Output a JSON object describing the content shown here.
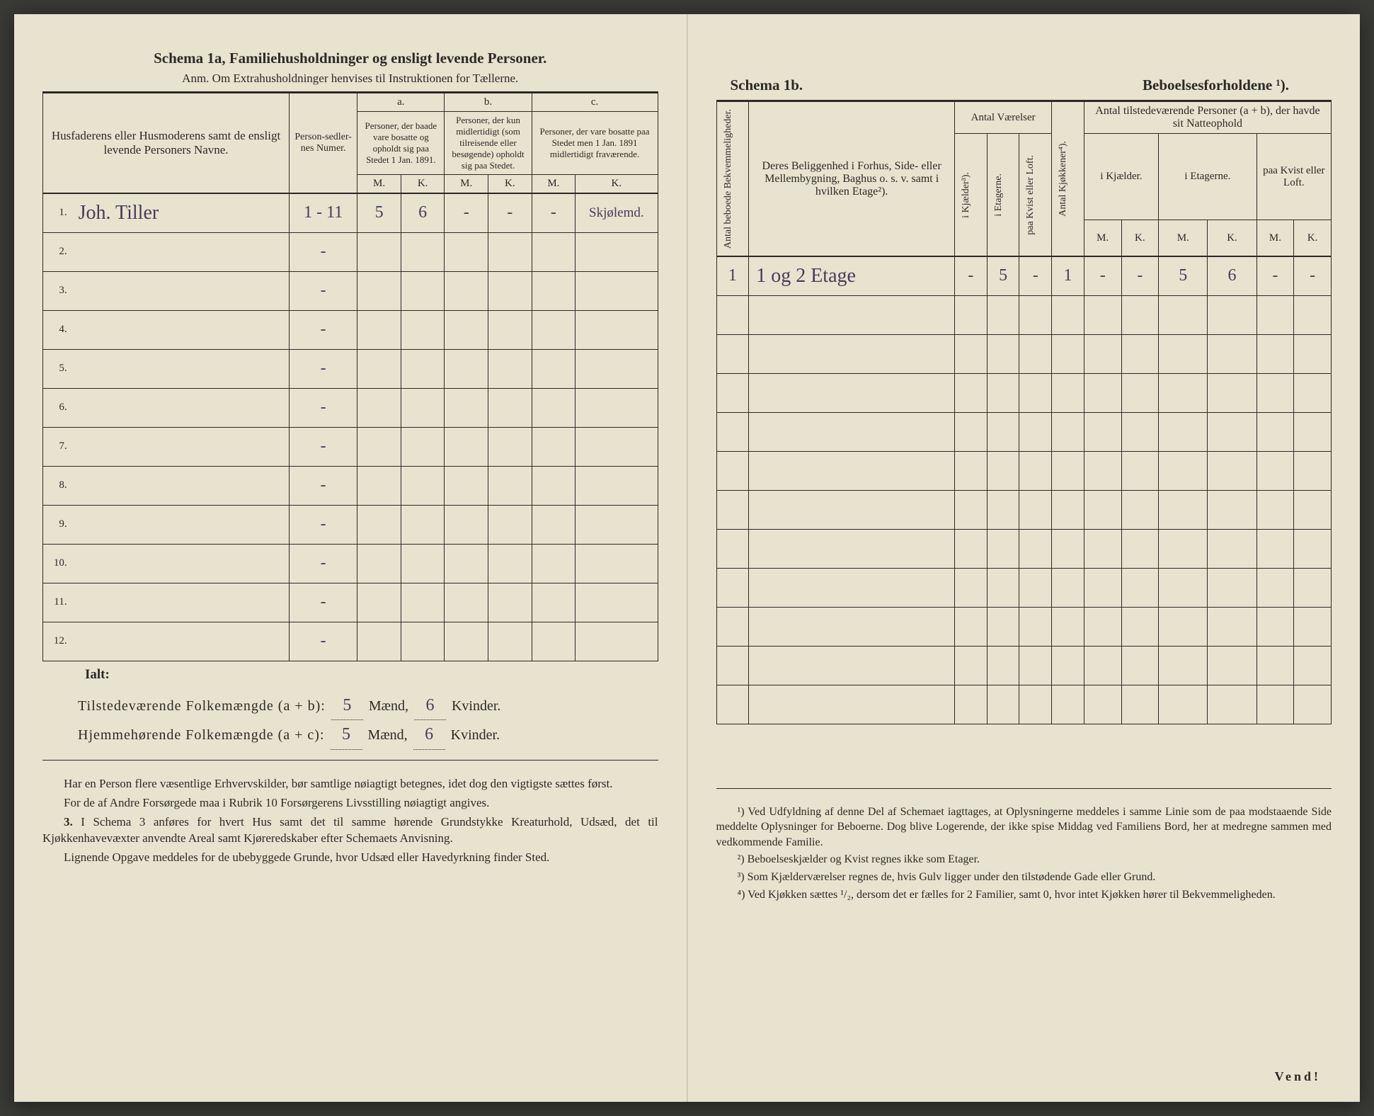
{
  "left": {
    "title": "Schema 1a,   Familiehusholdninger og ensligt levende Personer.",
    "anm": "Anm. Om Extrahusholdninger henvises til Instruktionen for Tællerne.",
    "headers": {
      "name": "Husfaderens eller Husmoderens samt de ensligt levende Personers Navne.",
      "person_num": "Person-sedler-nes Numer.",
      "a_label": "a.",
      "a_text": "Personer, der baade vare bosatte og opholdt sig paa Stedet 1 Jan. 1891.",
      "b_label": "b.",
      "b_text": "Personer, der kun midlertidigt (som tilreisende eller besøgende) opholdt sig paa Stedet.",
      "c_label": "c.",
      "c_text": "Personer, der vare bosatte paa Stedet men 1 Jan. 1891 midlertidigt fraværende.",
      "m": "M.",
      "k": "K."
    },
    "rows": [
      {
        "n": "1.",
        "name": "Joh. Tiller",
        "pn": "1 - 11",
        "am": "5",
        "ak": "6",
        "bm": "-",
        "bk": "-",
        "cm": "-",
        "ck": "Skjølemd."
      },
      {
        "n": "2.",
        "name": "",
        "pn": "-",
        "am": "",
        "ak": "",
        "bm": "",
        "bk": "",
        "cm": "",
        "ck": ""
      },
      {
        "n": "3.",
        "name": "",
        "pn": "-",
        "am": "",
        "ak": "",
        "bm": "",
        "bk": "",
        "cm": "",
        "ck": ""
      },
      {
        "n": "4.",
        "name": "",
        "pn": "-",
        "am": "",
        "ak": "",
        "bm": "",
        "bk": "",
        "cm": "",
        "ck": ""
      },
      {
        "n": "5.",
        "name": "",
        "pn": "-",
        "am": "",
        "ak": "",
        "bm": "",
        "bk": "",
        "cm": "",
        "ck": ""
      },
      {
        "n": "6.",
        "name": "",
        "pn": "-",
        "am": "",
        "ak": "",
        "bm": "",
        "bk": "",
        "cm": "",
        "ck": ""
      },
      {
        "n": "7.",
        "name": "",
        "pn": "-",
        "am": "",
        "ak": "",
        "bm": "",
        "bk": "",
        "cm": "",
        "ck": ""
      },
      {
        "n": "8.",
        "name": "",
        "pn": "-",
        "am": "",
        "ak": "",
        "bm": "",
        "bk": "",
        "cm": "",
        "ck": ""
      },
      {
        "n": "9.",
        "name": "",
        "pn": "-",
        "am": "",
        "ak": "",
        "bm": "",
        "bk": "",
        "cm": "",
        "ck": ""
      },
      {
        "n": "10.",
        "name": "",
        "pn": "-",
        "am": "",
        "ak": "",
        "bm": "",
        "bk": "",
        "cm": "",
        "ck": ""
      },
      {
        "n": "11.",
        "name": "",
        "pn": "-",
        "am": "",
        "ak": "",
        "bm": "",
        "bk": "",
        "cm": "",
        "ck": ""
      },
      {
        "n": "12.",
        "name": "",
        "pn": "-",
        "am": "",
        "ak": "",
        "bm": "",
        "bk": "",
        "cm": "",
        "ck": ""
      }
    ],
    "ialt": "Ialt:",
    "sum1_label": "Tilstedeværende Folkemængde (a + b):",
    "sum2_label": "Hjemmehørende Folkemængde (a + c):",
    "sum1_m": "5",
    "sum1_k": "6",
    "sum2_m": "5",
    "sum2_k": "6",
    "maend": "Mænd,",
    "kvinder": "Kvinder.",
    "notes": {
      "p1": "Har en Person flere væsentlige Erhvervskilder, bør samtlige nøiagtigt betegnes, idet dog den vigtigste sættes først.",
      "p2": "For de af Andre Forsørgede maa i Rubrik 10 Forsørgerens Livsstilling nøiagtigt angives.",
      "p3_num": "3.",
      "p3": "I Schema 3 anføres for hvert Hus samt det til samme hørende Grundstykke Kreaturhold, Udsæd, det til Kjøkkenhavevæxter anvendte Areal samt Kjøreredskaber efter Schemaets Anvisning.",
      "p4": "Lignende Opgave meddeles for de ubebyggede Grunde, hvor Udsæd eller Havedyrkning finder Sted."
    }
  },
  "right": {
    "title_a": "Schema 1b.",
    "title_b": "Beboelsesforholdene ¹).",
    "headers": {
      "antal_bekv": "Antal beboede Bekvemmeligheder.",
      "belig": "Deres Beliggenhed i Forhus, Side- eller Mellembygning, Baghus o. s. v. samt i hvilken Etage²).",
      "antal_vaer": "Antal Værelser",
      "kjelder": "i Kjælder³).",
      "etagerne": "i Etagerne.",
      "kvist": "paa Kvist eller Loft.",
      "kjokken": "Antal Kjøkkener⁴).",
      "tilstede": "Antal tilstedeværende Personer (a + b), der havde sit Natteophold",
      "ikj": "i Kjælder.",
      "iet": "i Etagerne.",
      "pkv": "paa Kvist eller Loft.",
      "m": "M.",
      "k": "K."
    },
    "rows": [
      {
        "n": "1",
        "belig": "1 og 2 Etage",
        "kj": "-",
        "et": "5",
        "kv": "-",
        "kk": "1",
        "km": "-",
        "kkf": "-",
        "em": "5",
        "ek": "6",
        "lm": "-",
        "lk": "-"
      },
      {
        "n": "",
        "belig": "",
        "kj": "",
        "et": "",
        "kv": "",
        "kk": "",
        "km": "",
        "kkf": "",
        "em": "",
        "ek": "",
        "lm": "",
        "lk": ""
      },
      {
        "n": "",
        "belig": "",
        "kj": "",
        "et": "",
        "kv": "",
        "kk": "",
        "km": "",
        "kkf": "",
        "em": "",
        "ek": "",
        "lm": "",
        "lk": ""
      },
      {
        "n": "",
        "belig": "",
        "kj": "",
        "et": "",
        "kv": "",
        "kk": "",
        "km": "",
        "kkf": "",
        "em": "",
        "ek": "",
        "lm": "",
        "lk": ""
      },
      {
        "n": "",
        "belig": "",
        "kj": "",
        "et": "",
        "kv": "",
        "kk": "",
        "km": "",
        "kkf": "",
        "em": "",
        "ek": "",
        "lm": "",
        "lk": ""
      },
      {
        "n": "",
        "belig": "",
        "kj": "",
        "et": "",
        "kv": "",
        "kk": "",
        "km": "",
        "kkf": "",
        "em": "",
        "ek": "",
        "lm": "",
        "lk": ""
      },
      {
        "n": "",
        "belig": "",
        "kj": "",
        "et": "",
        "kv": "",
        "kk": "",
        "km": "",
        "kkf": "",
        "em": "",
        "ek": "",
        "lm": "",
        "lk": ""
      },
      {
        "n": "",
        "belig": "",
        "kj": "",
        "et": "",
        "kv": "",
        "kk": "",
        "km": "",
        "kkf": "",
        "em": "",
        "ek": "",
        "lm": "",
        "lk": ""
      },
      {
        "n": "",
        "belig": "",
        "kj": "",
        "et": "",
        "kv": "",
        "kk": "",
        "km": "",
        "kkf": "",
        "em": "",
        "ek": "",
        "lm": "",
        "lk": ""
      },
      {
        "n": "",
        "belig": "",
        "kj": "",
        "et": "",
        "kv": "",
        "kk": "",
        "km": "",
        "kkf": "",
        "em": "",
        "ek": "",
        "lm": "",
        "lk": ""
      },
      {
        "n": "",
        "belig": "",
        "kj": "",
        "et": "",
        "kv": "",
        "kk": "",
        "km": "",
        "kkf": "",
        "em": "",
        "ek": "",
        "lm": "",
        "lk": ""
      },
      {
        "n": "",
        "belig": "",
        "kj": "",
        "et": "",
        "kv": "",
        "kk": "",
        "km": "",
        "kkf": "",
        "em": "",
        "ek": "",
        "lm": "",
        "lk": ""
      }
    ],
    "footnotes": {
      "f1": "¹) Ved Udfyldning af denne Del af Schemaet iagttages, at Oplysningerne meddeles i samme Linie som de paa modstaaende Side meddelte Oplysninger for Beboerne. Dog blive Logerende, der ikke spise Middag ved Familiens Bord, her at medregne sammen med vedkommende Familie.",
      "f2": "²) Beboelseskjælder og Kvist regnes ikke som Etager.",
      "f3": "³) Som Kjælderværelser regnes de, hvis Gulv ligger under den tilstødende Gade eller Grund.",
      "f4": "⁴) Ved Kjøkken sættes ¹/₂, dersom det er fælles for 2 Familier, samt 0, hvor intet Kjøkken hører til Bekvemmeligheden."
    },
    "vend": "Vend!"
  }
}
